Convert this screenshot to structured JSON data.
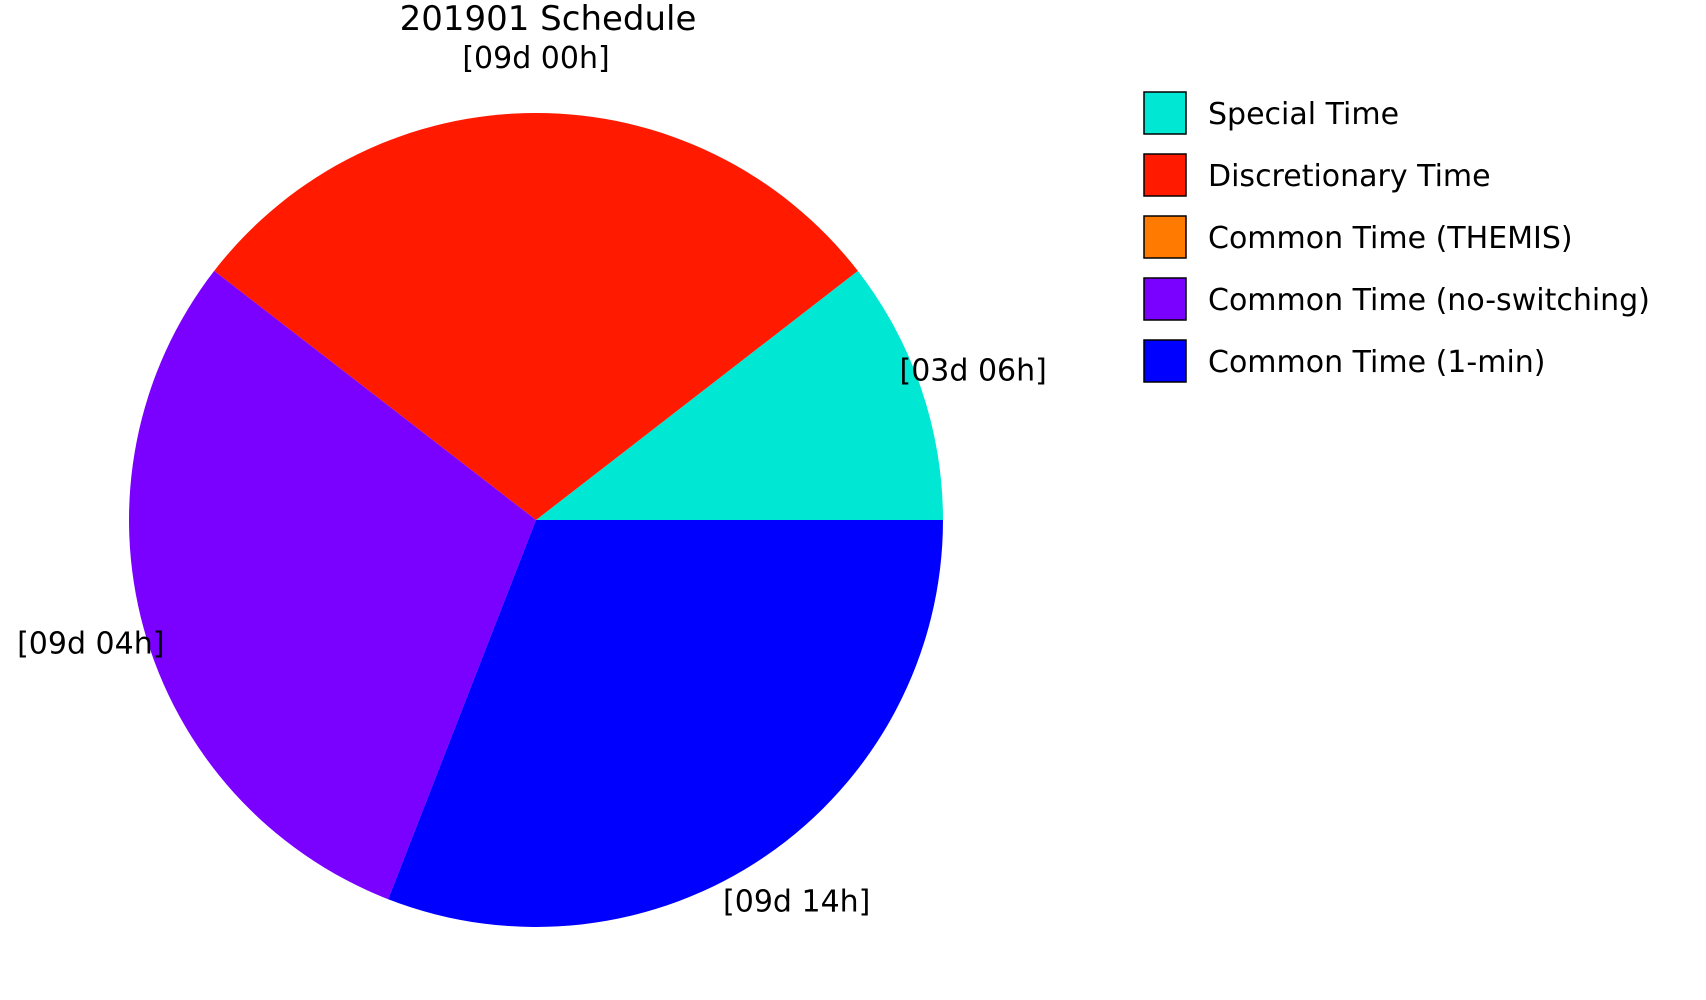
{
  "chart_data": {
    "type": "pie",
    "title": "201901 Schedule",
    "legend_position": "right",
    "slices": [
      {
        "name": "Special Time",
        "value_days": 3.25,
        "label": "[03d 06h]",
        "color": "#00E8D4"
      },
      {
        "name": "Discretionary Time",
        "value_days": 9.0,
        "label": "[09d 00h]",
        "color": "#FF1A00"
      },
      {
        "name": "Common Time (THEMIS)",
        "value_days": 0,
        "label": "",
        "color": "#FF7A00"
      },
      {
        "name": "Common Time (no-switching)",
        "value_days": 9.1667,
        "label": "[09d 04h]",
        "color": "#7A00FF"
      },
      {
        "name": "Common Time (1-min)",
        "value_days": 9.5833,
        "label": "[09d 14h]",
        "color": "#0000FF"
      }
    ]
  }
}
